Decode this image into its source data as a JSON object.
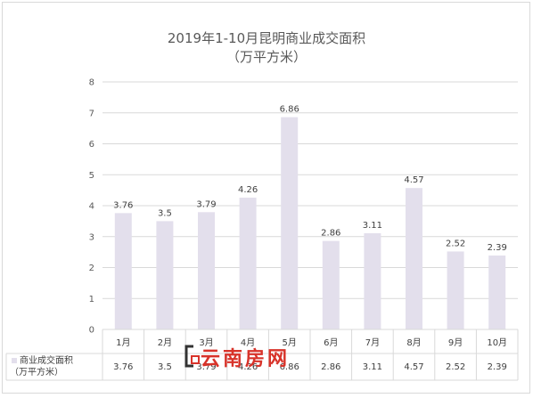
{
  "chart_data": {
    "type": "bar",
    "title": "2019年1-10月昆明商业成交面积",
    "subtitle": "（万平方米）",
    "categories": [
      "1月",
      "2月",
      "3月",
      "4月",
      "5月",
      "6月",
      "7月",
      "8月",
      "9月",
      "10月"
    ],
    "series": [
      {
        "name": "商业成交面积（万平方米）",
        "values": [
          3.76,
          3.5,
          3.79,
          4.26,
          6.86,
          2.86,
          3.11,
          4.57,
          2.52,
          2.39
        ],
        "labels": [
          "3.76",
          "3.5",
          "3.79",
          "4.26",
          "6.86",
          "2.86",
          "3.11",
          "4.57",
          "2.52",
          "2.39"
        ],
        "color": "#e3dfec"
      }
    ],
    "ylim": [
      0,
      8
    ],
    "yticks": [
      0,
      1,
      2,
      3,
      4,
      5,
      6,
      7,
      8
    ],
    "xlabel": "",
    "ylabel": "",
    "grid": true,
    "data_table": true,
    "table_legend_line1": "商业成交面积",
    "table_legend_line2": "（万平方米）"
  },
  "watermark": {
    "text": "云南房网",
    "icon": "bracket-logo-icon",
    "color": "#d8332a"
  },
  "colors": {
    "bar": "#e3dfec",
    "grid": "#d9d9d9",
    "text": "#595959"
  }
}
